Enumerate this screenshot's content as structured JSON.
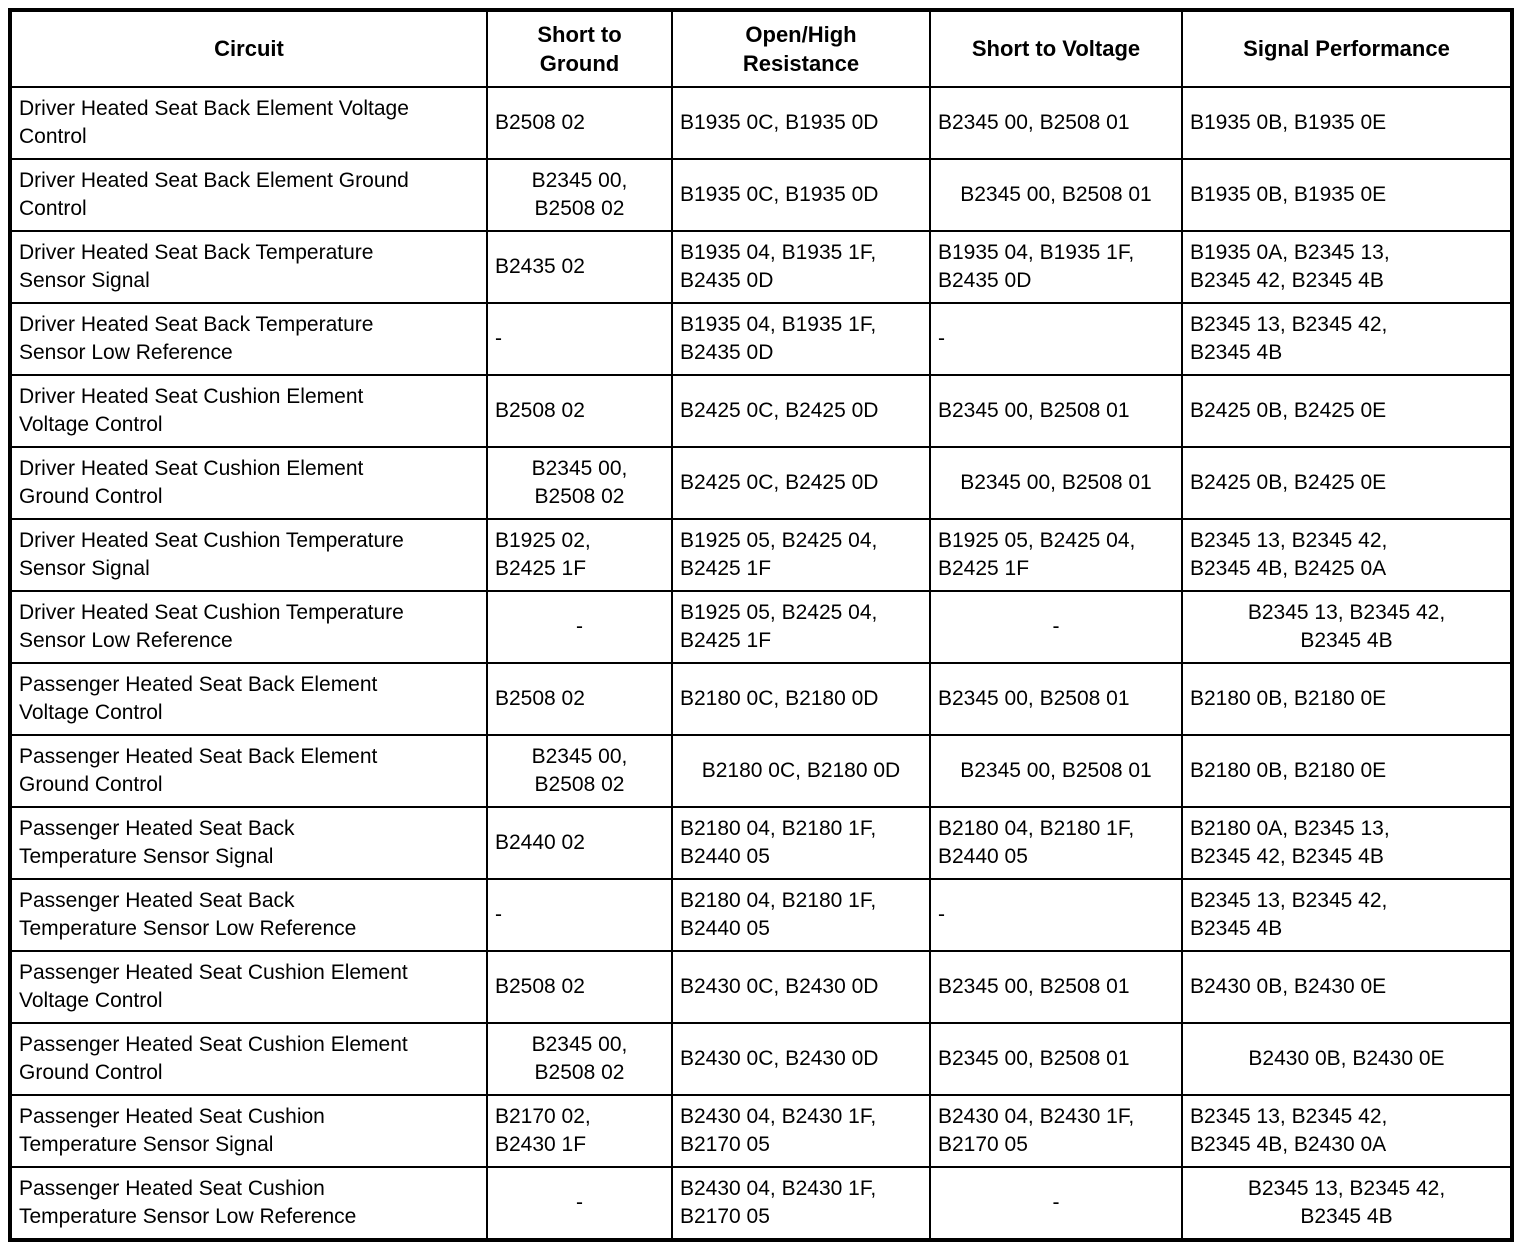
{
  "colors": {
    "border": "#000000",
    "text": "#000000",
    "background": "#ffffff"
  },
  "table": {
    "headers": [
      {
        "label": "Circuit"
      },
      {
        "label": "Short to\nGround"
      },
      {
        "label": "Open/High\nResistance"
      },
      {
        "label": "Short to Voltage"
      },
      {
        "label": "Signal Performance"
      }
    ],
    "rows": [
      {
        "cells": [
          {
            "text": "Driver Heated Seat Back Element Voltage\nControl",
            "align": "left"
          },
          {
            "text": "B2508 02",
            "align": "left"
          },
          {
            "text": "B1935 0C, B1935 0D",
            "align": "left"
          },
          {
            "text": "B2345 00, B2508 01",
            "align": "left"
          },
          {
            "text": "B1935 0B, B1935 0E",
            "align": "left"
          }
        ]
      },
      {
        "cells": [
          {
            "text": "Driver Heated Seat Back Element Ground\nControl",
            "align": "left"
          },
          {
            "text": "B2345 00,\nB2508 02",
            "align": "center"
          },
          {
            "text": "B1935 0C, B1935 0D",
            "align": "left"
          },
          {
            "text": "B2345 00, B2508 01",
            "align": "center"
          },
          {
            "text": "B1935 0B, B1935 0E",
            "align": "left"
          }
        ]
      },
      {
        "cells": [
          {
            "text": "Driver Heated Seat Back Temperature\nSensor Signal",
            "align": "left"
          },
          {
            "text": "B2435 02",
            "align": "left"
          },
          {
            "text": "B1935 04, B1935 1F,\nB2435 0D",
            "align": "left"
          },
          {
            "text": "B1935 04, B1935 1F,\nB2435 0D",
            "align": "left"
          },
          {
            "text": "B1935 0A, B2345 13,\nB2345 42, B2345 4B",
            "align": "left"
          }
        ]
      },
      {
        "cells": [
          {
            "text": "Driver Heated Seat Back Temperature\nSensor Low Reference",
            "align": "left"
          },
          {
            "text": "-",
            "align": "left"
          },
          {
            "text": "B1935 04, B1935 1F,\nB2435 0D",
            "align": "left"
          },
          {
            "text": "-",
            "align": "left"
          },
          {
            "text": "B2345 13, B2345 42,\nB2345 4B",
            "align": "left"
          }
        ]
      },
      {
        "cells": [
          {
            "text": "Driver Heated Seat Cushion Element\nVoltage Control",
            "align": "left"
          },
          {
            "text": "B2508 02",
            "align": "left"
          },
          {
            "text": "B2425 0C, B2425 0D",
            "align": "left"
          },
          {
            "text": "B2345 00, B2508 01",
            "align": "left"
          },
          {
            "text": "B2425 0B, B2425 0E",
            "align": "left"
          }
        ]
      },
      {
        "cells": [
          {
            "text": "Driver Heated Seat Cushion Element\nGround Control",
            "align": "left"
          },
          {
            "text": "B2345 00,\nB2508 02",
            "align": "center"
          },
          {
            "text": "B2425 0C, B2425 0D",
            "align": "left"
          },
          {
            "text": "B2345 00, B2508 01",
            "align": "center"
          },
          {
            "text": "B2425 0B, B2425 0E",
            "align": "left"
          }
        ]
      },
      {
        "cells": [
          {
            "text": "Driver Heated Seat Cushion Temperature\nSensor Signal",
            "align": "left"
          },
          {
            "text": "B1925 02,\nB2425 1F",
            "align": "left"
          },
          {
            "text": "B1925 05, B2425 04,\nB2425 1F",
            "align": "left"
          },
          {
            "text": "B1925 05, B2425 04,\nB2425 1F",
            "align": "left"
          },
          {
            "text": "B2345 13, B2345 42,\nB2345 4B, B2425 0A",
            "align": "left"
          }
        ]
      },
      {
        "cells": [
          {
            "text": "Driver Heated Seat Cushion Temperature\nSensor Low Reference",
            "align": "left"
          },
          {
            "text": "-",
            "align": "center"
          },
          {
            "text": "B1925 05, B2425 04,\nB2425 1F",
            "align": "left"
          },
          {
            "text": "-",
            "align": "center"
          },
          {
            "text": "B2345 13, B2345 42,\nB2345 4B",
            "align": "center"
          }
        ]
      },
      {
        "cells": [
          {
            "text": "Passenger Heated Seat Back Element\nVoltage Control",
            "align": "left"
          },
          {
            "text": "B2508 02",
            "align": "left"
          },
          {
            "text": "B2180 0C, B2180 0D",
            "align": "left"
          },
          {
            "text": "B2345 00, B2508 01",
            "align": "left"
          },
          {
            "text": "B2180 0B, B2180 0E",
            "align": "left"
          }
        ]
      },
      {
        "cells": [
          {
            "text": "Passenger Heated Seat Back Element\nGround Control",
            "align": "left"
          },
          {
            "text": "B2345 00,\nB2508 02",
            "align": "center"
          },
          {
            "text": "B2180 0C, B2180 0D",
            "align": "center"
          },
          {
            "text": "B2345 00, B2508 01",
            "align": "center"
          },
          {
            "text": "B2180 0B, B2180 0E",
            "align": "left"
          }
        ]
      },
      {
        "cells": [
          {
            "text": "Passenger Heated Seat Back\nTemperature Sensor Signal",
            "align": "left"
          },
          {
            "text": "B2440 02",
            "align": "left"
          },
          {
            "text": "B2180 04, B2180 1F,\nB2440 05",
            "align": "left"
          },
          {
            "text": "B2180 04, B2180 1F,\nB2440 05",
            "align": "left"
          },
          {
            "text": "B2180 0A, B2345 13,\nB2345 42, B2345 4B",
            "align": "left"
          }
        ]
      },
      {
        "cells": [
          {
            "text": "Passenger Heated Seat Back\nTemperature Sensor Low Reference",
            "align": "left"
          },
          {
            "text": "-",
            "align": "left"
          },
          {
            "text": "B2180 04, B2180 1F,\nB2440 05",
            "align": "left"
          },
          {
            "text": "-",
            "align": "left"
          },
          {
            "text": "B2345 13, B2345 42,\nB2345 4B",
            "align": "left"
          }
        ]
      },
      {
        "cells": [
          {
            "text": "Passenger Heated Seat Cushion Element\nVoltage Control",
            "align": "left"
          },
          {
            "text": "B2508 02",
            "align": "left"
          },
          {
            "text": "B2430 0C, B2430 0D",
            "align": "left"
          },
          {
            "text": "B2345 00, B2508 01",
            "align": "left"
          },
          {
            "text": "B2430 0B, B2430 0E",
            "align": "left"
          }
        ]
      },
      {
        "cells": [
          {
            "text": "Passenger Heated Seat Cushion Element\nGround Control",
            "align": "left"
          },
          {
            "text": "B2345 00,\nB2508 02",
            "align": "center"
          },
          {
            "text": "B2430 0C, B2430 0D",
            "align": "left"
          },
          {
            "text": "B2345 00, B2508 01",
            "align": "left"
          },
          {
            "text": "B2430 0B, B2430 0E",
            "align": "center"
          }
        ]
      },
      {
        "cells": [
          {
            "text": "Passenger Heated Seat Cushion\nTemperature Sensor Signal",
            "align": "left"
          },
          {
            "text": "B2170 02,\nB2430 1F",
            "align": "left"
          },
          {
            "text": "B2430 04, B2430 1F,\nB2170 05",
            "align": "left"
          },
          {
            "text": "B2430 04, B2430 1F,\nB2170 05",
            "align": "left"
          },
          {
            "text": "B2345 13, B2345 42,\nB2345 4B, B2430 0A",
            "align": "left"
          }
        ]
      },
      {
        "cells": [
          {
            "text": "Passenger Heated Seat Cushion\nTemperature Sensor Low Reference",
            "align": "left"
          },
          {
            "text": "-",
            "align": "center"
          },
          {
            "text": "B2430 04, B2430 1F,\nB2170 05",
            "align": "left"
          },
          {
            "text": "-",
            "align": "center"
          },
          {
            "text": "B2345 13, B2345 42,\nB2345 4B",
            "align": "center"
          }
        ]
      }
    ]
  }
}
